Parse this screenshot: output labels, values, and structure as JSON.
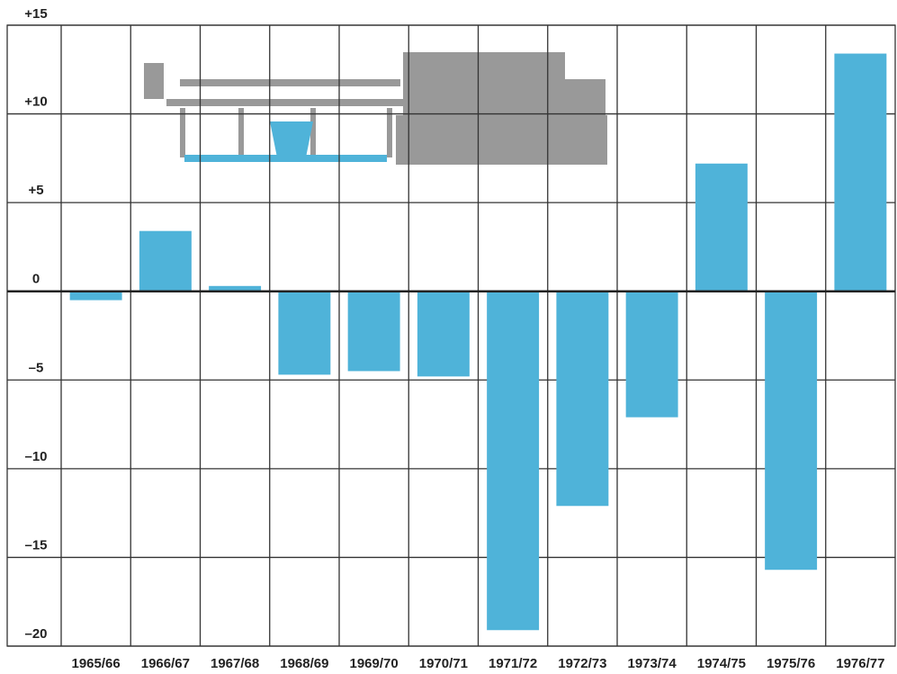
{
  "chart_data": {
    "type": "bar",
    "categories": [
      "1965/66",
      "1966/67",
      "1967/68",
      "1968/69",
      "1969/70",
      "1970/71",
      "1971/72",
      "1972/73",
      "1973/74",
      "1974/75",
      "1975/76",
      "1976/77"
    ],
    "values": [
      -0.5,
      3.4,
      0.3,
      -4.7,
      -4.5,
      -4.8,
      -19.1,
      -12.1,
      -7.1,
      7.2,
      -15.7,
      13.4
    ],
    "color": "#4fb3d9",
    "ylim": [
      -20,
      15
    ],
    "yticks": [
      {
        "value": -20,
        "label": "–20"
      },
      {
        "value": -15,
        "label": "–15"
      },
      {
        "value": -10,
        "label": "–10"
      },
      {
        "value": -5,
        "label": "–5"
      },
      0,
      {
        "value": 5,
        "label": "+5"
      },
      {
        "value": 10,
        "label": "+10"
      },
      {
        "value": 15,
        "label": "+15"
      }
    ],
    "grid": true
  }
}
